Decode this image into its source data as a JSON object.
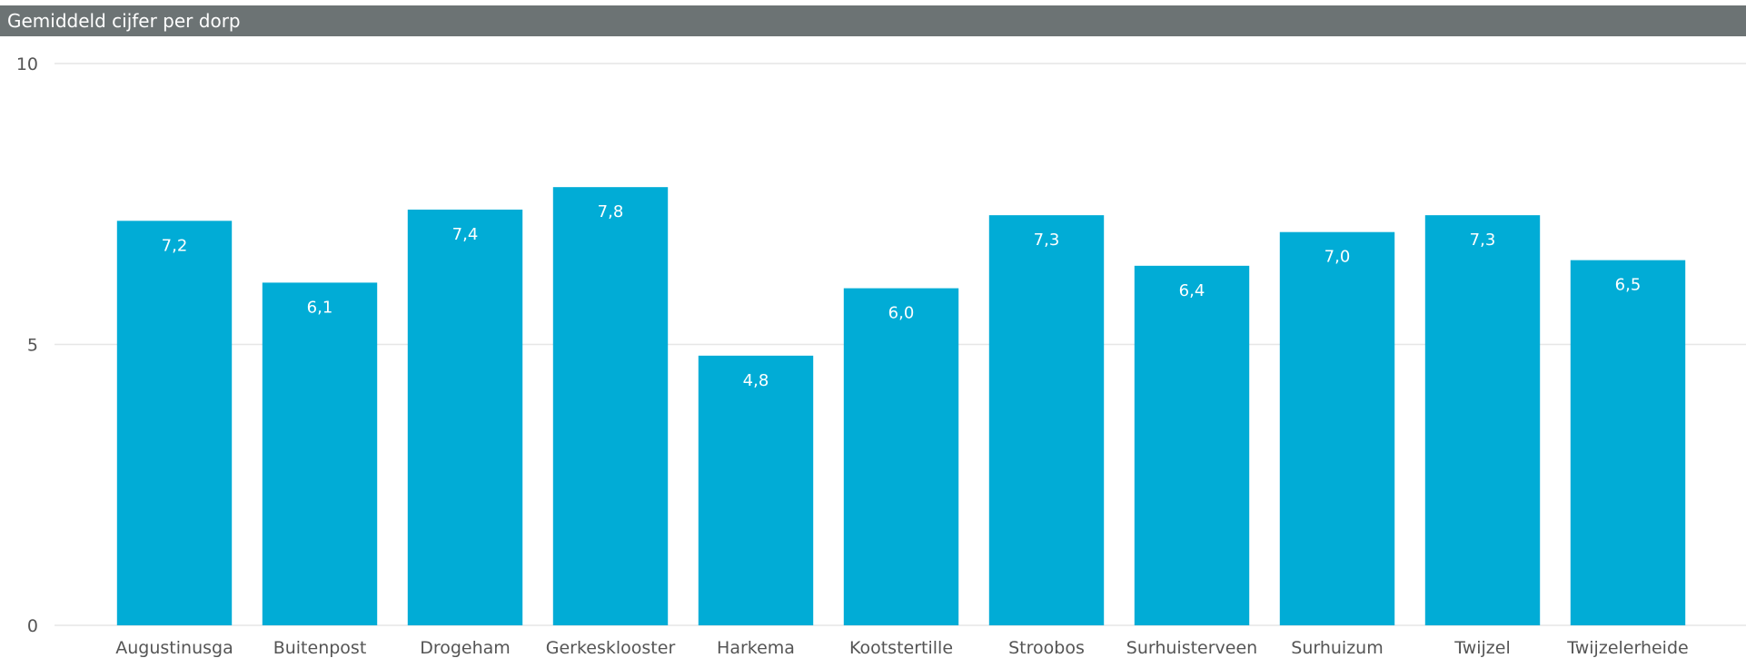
{
  "chart_data": {
    "type": "bar",
    "title": "Gemiddeld cijfer per dorp",
    "xlabel": "",
    "ylabel": "",
    "categories": [
      "Augustinusga",
      "Buitenpost",
      "Drogeham",
      "Gerkesklooster",
      "Harkema",
      "Kootstertille",
      "Stroobos",
      "Surhuisterveen",
      "Surhuizum",
      "Twijzel",
      "Twijzelerheide"
    ],
    "values": [
      7.2,
      6.1,
      7.4,
      7.8,
      4.8,
      6.0,
      7.3,
      6.4,
      7.0,
      7.3,
      6.5
    ],
    "data_labels": [
      "7,2",
      "6,1",
      "7,4",
      "7,8",
      "4,8",
      "6,0",
      "7,3",
      "6,4",
      "7,0",
      "7,3",
      "6,5"
    ],
    "yticks": [
      0,
      5,
      10
    ],
    "ylim": [
      0,
      10
    ],
    "grid": true,
    "legend": "none",
    "colors": {
      "bar": "#01acd6",
      "title_bar": "#6c7374",
      "gridline": "#e6e6e6",
      "axis_text": "#555555"
    }
  }
}
